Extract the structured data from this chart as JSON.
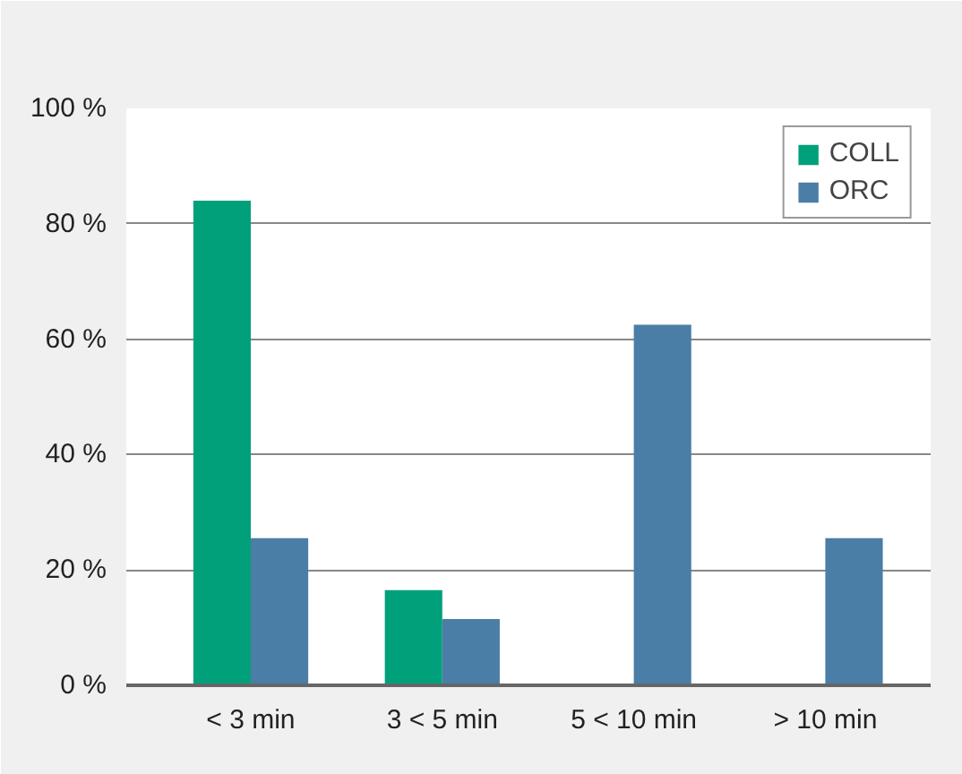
{
  "chart_data": {
    "type": "bar",
    "categories": [
      "< 3 min",
      "3 < 5 min",
      "5 < 10 min",
      "> 10 min"
    ],
    "series": [
      {
        "name": "COLL",
        "color": "#00a07a",
        "values": [
          84,
          16.5,
          0,
          0
        ]
      },
      {
        "name": "ORC",
        "color": "#4a7ea6",
        "values": [
          25.5,
          11.5,
          62.5,
          25.5
        ]
      }
    ],
    "ylim": [
      0,
      100
    ],
    "yticks": [
      {
        "value": 0,
        "label": "0 %"
      },
      {
        "value": 20,
        "label": "20 %"
      },
      {
        "value": 40,
        "label": "40 %"
      },
      {
        "value": 60,
        "label": "60 %"
      },
      {
        "value": 80,
        "label": "80 %"
      },
      {
        "value": 100,
        "label": "100 %"
      }
    ],
    "grid": "y",
    "legend": "top right"
  }
}
